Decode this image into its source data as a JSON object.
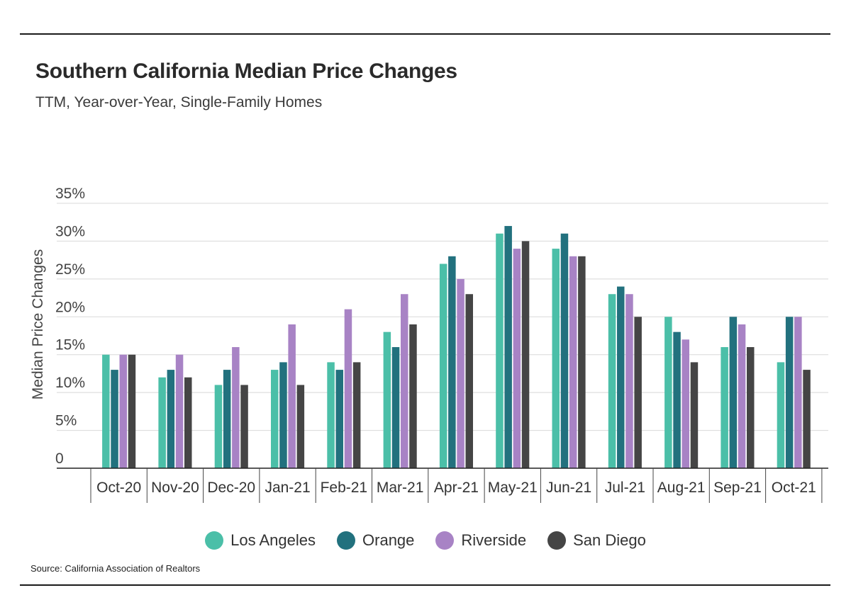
{
  "header": {
    "title": "Southern California Median Price Changes",
    "subtitle": "TTM, Year-over-Year, Single-Family Homes"
  },
  "source": "Source:  California Association of Realtors",
  "colors": {
    "Los Angeles": "#4bbfa8",
    "Orange": "#22717e",
    "Riverside": "#a883c5",
    "San Diego": "#454545",
    "grid": "#d8d8d8",
    "axis": "#222222"
  },
  "chart_data": {
    "type": "bar",
    "title": "Southern California Median Price Changes",
    "subtitle": "TTM, Year-over-Year, Single-Family Homes",
    "xlabel": "",
    "ylabel": "Median Price Changes",
    "ylim": [
      0,
      35
    ],
    "yticks": [
      0,
      5,
      10,
      15,
      20,
      25,
      30,
      35
    ],
    "ytick_labels": [
      "0",
      "5%",
      "10%",
      "15%",
      "20%",
      "25%",
      "30%",
      "35%"
    ],
    "grid": true,
    "legend_position": "bottom",
    "categories": [
      "Oct-20",
      "Nov-20",
      "Dec-20",
      "Jan-21",
      "Feb-21",
      "Mar-21",
      "Apr-21",
      "May-21",
      "Jun-21",
      "Jul-21",
      "Aug-21",
      "Sep-21",
      "Oct-21"
    ],
    "series": [
      {
        "name": "Los Angeles",
        "values": [
          15,
          12,
          11,
          13,
          14,
          18,
          27,
          31,
          29,
          23,
          20,
          16,
          14
        ]
      },
      {
        "name": "Orange",
        "values": [
          13,
          13,
          13,
          14,
          13,
          16,
          28,
          32,
          31,
          24,
          18,
          20,
          20
        ]
      },
      {
        "name": "Riverside",
        "values": [
          15,
          15,
          16,
          19,
          21,
          23,
          25,
          29,
          28,
          23,
          17,
          19,
          20
        ]
      },
      {
        "name": "San Diego",
        "values": [
          15,
          12,
          11,
          11,
          14,
          19,
          23,
          30,
          28,
          20,
          14,
          16,
          13
        ]
      }
    ]
  }
}
